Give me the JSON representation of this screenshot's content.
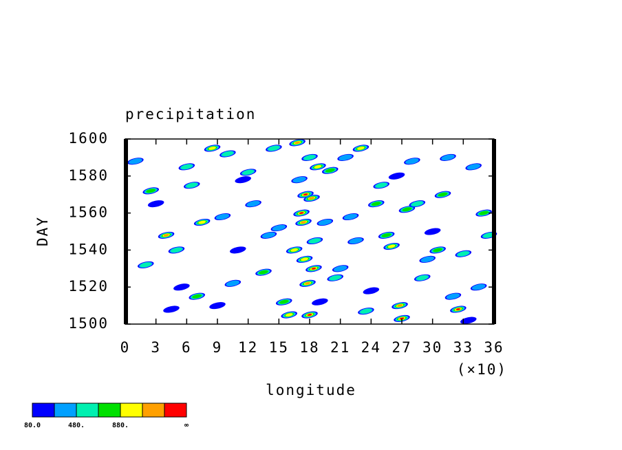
{
  "chart_data": {
    "type": "contour",
    "title": "precipitation",
    "x_label": "longitude",
    "y_label": "DAY",
    "x_multiplier": "(×10)",
    "xlim": [
      0,
      360
    ],
    "ylim": [
      1500,
      1600
    ],
    "xticks": [
      {
        "value": 0,
        "label": "0"
      },
      {
        "value": 30,
        "label": "3"
      },
      {
        "value": 60,
        "label": "6"
      },
      {
        "value": 90,
        "label": "9"
      },
      {
        "value": 120,
        "label": "12"
      },
      {
        "value": 150,
        "label": "15"
      },
      {
        "value": 180,
        "label": "18"
      },
      {
        "value": 210,
        "label": "21"
      },
      {
        "value": 240,
        "label": "24"
      },
      {
        "value": 270,
        "label": "27"
      },
      {
        "value": 300,
        "label": "30"
      },
      {
        "value": 330,
        "label": "33"
      },
      {
        "value": 360,
        "label": "36"
      }
    ],
    "yticks": [
      1500,
      1520,
      1540,
      1560,
      1580,
      1600
    ],
    "levels": [
      80,
      280,
      480,
      680,
      880,
      1080,
      1280
    ],
    "colors": [
      "#0000ff",
      "#00a0ff",
      "#00f0b0",
      "#00e000",
      "#ffff00",
      "#ffa000",
      "#ff0000"
    ],
    "colorbar_labels": [
      "80.0",
      null,
      "480.",
      null,
      "880.",
      null,
      null,
      "∞"
    ],
    "x": [
      10,
      25,
      40,
      55,
      60,
      75,
      90,
      100,
      110,
      125,
      135,
      150,
      160,
      170,
      172,
      175,
      178,
      180,
      182,
      185,
      190,
      200,
      210,
      220,
      230,
      240,
      250,
      260,
      270,
      275,
      280,
      290,
      300,
      310,
      320,
      330,
      340,
      350,
      20,
      45,
      65,
      85,
      105,
      120,
      140,
      155,
      168,
      176,
      184,
      195,
      215,
      235,
      255,
      265,
      285,
      305,
      325,
      345,
      30,
      50,
      70,
      95,
      115,
      145,
      165,
      174,
      180,
      188,
      205,
      225,
      245,
      268,
      295,
      315,
      335,
      355
    ],
    "y": [
      1588,
      1572,
      1548,
      1520,
      1585,
      1555,
      1510,
      1592,
      1540,
      1565,
      1528,
      1552,
      1505,
      1578,
      1560,
      1535,
      1522,
      1590,
      1568,
      1545,
      1512,
      1583,
      1530,
      1558,
      1595,
      1518,
      1575,
      1542,
      1503,
      1562,
      1588,
      1525,
      1550,
      1570,
      1515,
      1538,
      1585,
      1560,
      1532,
      1508,
      1575,
      1595,
      1522,
      1582,
      1548,
      1512,
      1598,
      1570,
      1530,
      1555,
      1590,
      1507,
      1548,
      1580,
      1565,
      1540,
      1508,
      1520,
      1565,
      1540,
      1515,
      1558,
      1578,
      1595,
      1540,
      1555,
      1505,
      1585,
      1525,
      1545,
      1565,
      1510,
      1535,
      1590,
      1502,
      1548
    ],
    "values": [
      300,
      700,
      1100,
      200,
      500,
      900,
      250,
      600,
      150,
      400,
      800,
      350,
      1000,
      450,
      1300,
      950,
      1200,
      650,
      1250,
      550,
      180,
      750,
      420,
      320,
      880,
      260,
      520,
      980,
      1350,
      700,
      380,
      620,
      240,
      860,
      430,
      560,
      300,
      720,
      480,
      210,
      640,
      900,
      370,
      520,
      280,
      740,
      1150,
      1380,
      1290,
      460,
      330,
      600,
      780,
      250,
      500,
      690,
      1320,
      410,
      270,
      560,
      820,
      390,
      230,
      610,
      1050,
      1240,
      1390,
      980,
      540,
      350,
      720,
      1100,
      300,
      460,
      200,
      640
    ]
  }
}
